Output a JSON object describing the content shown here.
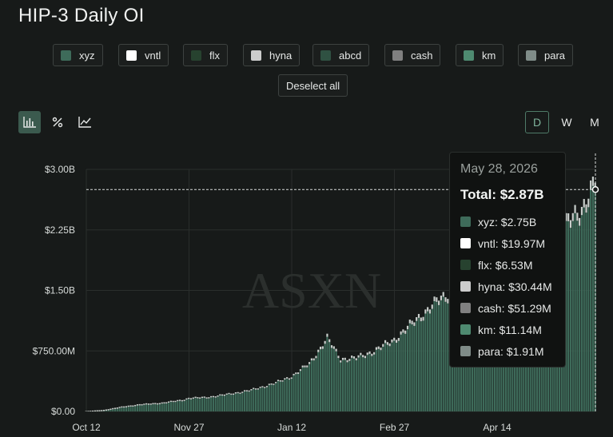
{
  "title": "HIP-3 Daily OI",
  "legend": [
    {
      "label": "xyz",
      "color": "#3e6b5a"
    },
    {
      "label": "vntl",
      "color": "#ffffff"
    },
    {
      "label": "flx",
      "color": "#27422f"
    },
    {
      "label": "hyna",
      "color": "#cccccc"
    },
    {
      "label": "abcd",
      "color": "#2f5142"
    },
    {
      "label": "cash",
      "color": "#808080"
    },
    {
      "label": "km",
      "color": "#4e8a70"
    },
    {
      "label": "para",
      "color": "#7f8c88"
    }
  ],
  "deselect_label": "Deselect all",
  "tools": [
    {
      "name": "bar-chart-icon",
      "glyph": "📊"
    },
    {
      "name": "percent-icon",
      "glyph": "%"
    },
    {
      "name": "line-chart-icon",
      "glyph": "📈"
    }
  ],
  "periods": [
    "D",
    "W",
    "M"
  ],
  "watermark": "ASXN",
  "tooltip": {
    "date": "May 28, 2026",
    "total": "Total: $2.87B",
    "rows": [
      {
        "label": "xyz: $2.75B",
        "color": "#3e6b5a"
      },
      {
        "label": "vntl: $19.97M",
        "color": "#ffffff"
      },
      {
        "label": "flx: $6.53M",
        "color": "#27422f"
      },
      {
        "label": "hyna: $30.44M",
        "color": "#cccccc"
      },
      {
        "label": "cash: $51.29M",
        "color": "#808080"
      },
      {
        "label": "km: $11.14M",
        "color": "#4e8a70"
      },
      {
        "label": "para: $1.91M",
        "color": "#7f8c88"
      }
    ]
  },
  "chart_data": {
    "type": "bar",
    "stacked": true,
    "ylim": [
      0,
      3000000000
    ],
    "yticks": [
      {
        "value": 0,
        "label": "$0.00"
      },
      {
        "value": 750000000,
        "label": "$750.00M"
      },
      {
        "value": 1500000000,
        "label": "$1.50B"
      },
      {
        "value": 2250000000,
        "label": "$2.25B"
      },
      {
        "value": 3000000000,
        "label": "$3.00B"
      }
    ],
    "xticks": [
      "Oct 12",
      "Nov 27",
      "Jan 12",
      "Feb 27",
      "Apr 14"
    ],
    "x_start": "2025-10-12",
    "x_end": "2026-05-28",
    "grid": true,
    "series_points": [
      [
        "2025-10-12",
        0.005
      ],
      [
        "2025-10-20",
        0.02
      ],
      [
        "2025-10-28",
        0.06
      ],
      [
        "2025-11-05",
        0.09
      ],
      [
        "2025-11-15",
        0.11
      ],
      [
        "2025-11-25",
        0.15
      ],
      [
        "2025-11-27",
        0.17
      ],
      [
        "2025-12-05",
        0.18
      ],
      [
        "2025-12-15",
        0.22
      ],
      [
        "2025-12-25",
        0.27
      ],
      [
        "2026-01-05",
        0.36
      ],
      [
        "2026-01-12",
        0.44
      ],
      [
        "2026-01-20",
        0.6
      ],
      [
        "2026-01-28",
        0.92
      ],
      [
        "2026-02-03",
        0.66
      ],
      [
        "2026-02-10",
        0.67
      ],
      [
        "2026-02-18",
        0.76
      ],
      [
        "2026-02-27",
        0.9
      ],
      [
        "2026-03-08",
        1.13
      ],
      [
        "2026-03-18",
        1.38
      ],
      [
        "2026-03-28",
        1.55
      ],
      [
        "2026-04-05",
        1.55
      ],
      [
        "2026-04-14",
        1.6
      ],
      [
        "2026-04-25",
        1.95
      ],
      [
        "2026-05-05",
        2.18
      ],
      [
        "2026-05-15",
        2.35
      ],
      [
        "2026-05-22",
        2.55
      ],
      [
        "2026-05-28",
        2.87
      ]
    ],
    "highlight": {
      "date": "2026-05-28",
      "total": 2870000000,
      "xyz": 2750000000
    }
  }
}
